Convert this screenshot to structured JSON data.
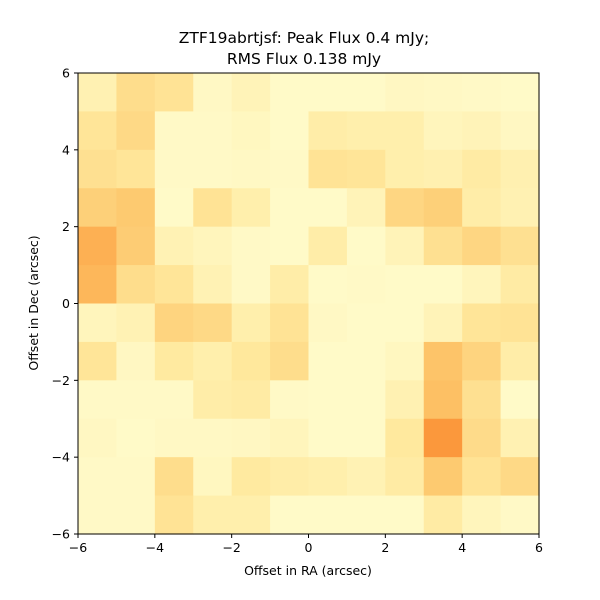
{
  "chart_data": {
    "type": "heatmap",
    "title_line1": "ZTF19abrtjsf: Peak Flux 0.4 mJy;",
    "title_line2": "RMS Flux 0.138 mJy",
    "xlabel": "Offset in RA (arcsec)",
    "ylabel": "Offset in Dec (arcsec)",
    "xlim": [
      -6,
      6
    ],
    "ylim": [
      -6,
      6
    ],
    "xticks": [
      -6,
      -4,
      -2,
      0,
      2,
      4,
      6
    ],
    "yticks": [
      -6,
      -4,
      -2,
      0,
      2,
      4,
      6
    ],
    "xtick_labels": [
      "−6",
      "−4",
      "−2",
      "0",
      "2",
      "4",
      "6"
    ],
    "ytick_labels": [
      "−6",
      "−4",
      "−2",
      "0",
      "2",
      "4",
      "6"
    ],
    "colormap": "YlOrBr-like (light yellow low, orange high)",
    "grid": false,
    "rows_top_to_bottom": [
      [
        0.15,
        0.35,
        0.3,
        0.06,
        0.12,
        0.04,
        0.04,
        0.04,
        0.07,
        0.06,
        0.05,
        0.04
      ],
      [
        0.28,
        0.38,
        0.05,
        0.05,
        0.08,
        0.04,
        0.2,
        0.18,
        0.18,
        0.1,
        0.12,
        0.07
      ],
      [
        0.32,
        0.28,
        0.05,
        0.05,
        0.06,
        0.05,
        0.3,
        0.28,
        0.18,
        0.16,
        0.22,
        0.16
      ],
      [
        0.45,
        0.5,
        0.04,
        0.3,
        0.18,
        0.04,
        0.04,
        0.12,
        0.4,
        0.45,
        0.2,
        0.15
      ],
      [
        0.7,
        0.48,
        0.14,
        0.1,
        0.05,
        0.04,
        0.2,
        0.04,
        0.12,
        0.32,
        0.4,
        0.32
      ],
      [
        0.65,
        0.35,
        0.28,
        0.14,
        0.05,
        0.2,
        0.04,
        0.05,
        0.04,
        0.04,
        0.1,
        0.22
      ],
      [
        0.1,
        0.14,
        0.42,
        0.38,
        0.18,
        0.3,
        0.06,
        0.04,
        0.04,
        0.12,
        0.28,
        0.3
      ],
      [
        0.28,
        0.07,
        0.24,
        0.18,
        0.26,
        0.35,
        0.04,
        0.04,
        0.08,
        0.55,
        0.42,
        0.2
      ],
      [
        0.05,
        0.05,
        0.05,
        0.2,
        0.22,
        0.05,
        0.04,
        0.04,
        0.15,
        0.58,
        0.32,
        0.04
      ],
      [
        0.07,
        0.04,
        0.06,
        0.06,
        0.07,
        0.1,
        0.04,
        0.04,
        0.25,
        0.9,
        0.36,
        0.15
      ],
      [
        0.05,
        0.05,
        0.35,
        0.08,
        0.24,
        0.2,
        0.18,
        0.14,
        0.22,
        0.5,
        0.3,
        0.38
      ],
      [
        0.05,
        0.05,
        0.3,
        0.18,
        0.18,
        0.04,
        0.04,
        0.04,
        0.04,
        0.22,
        0.1,
        0.05
      ]
    ]
  }
}
